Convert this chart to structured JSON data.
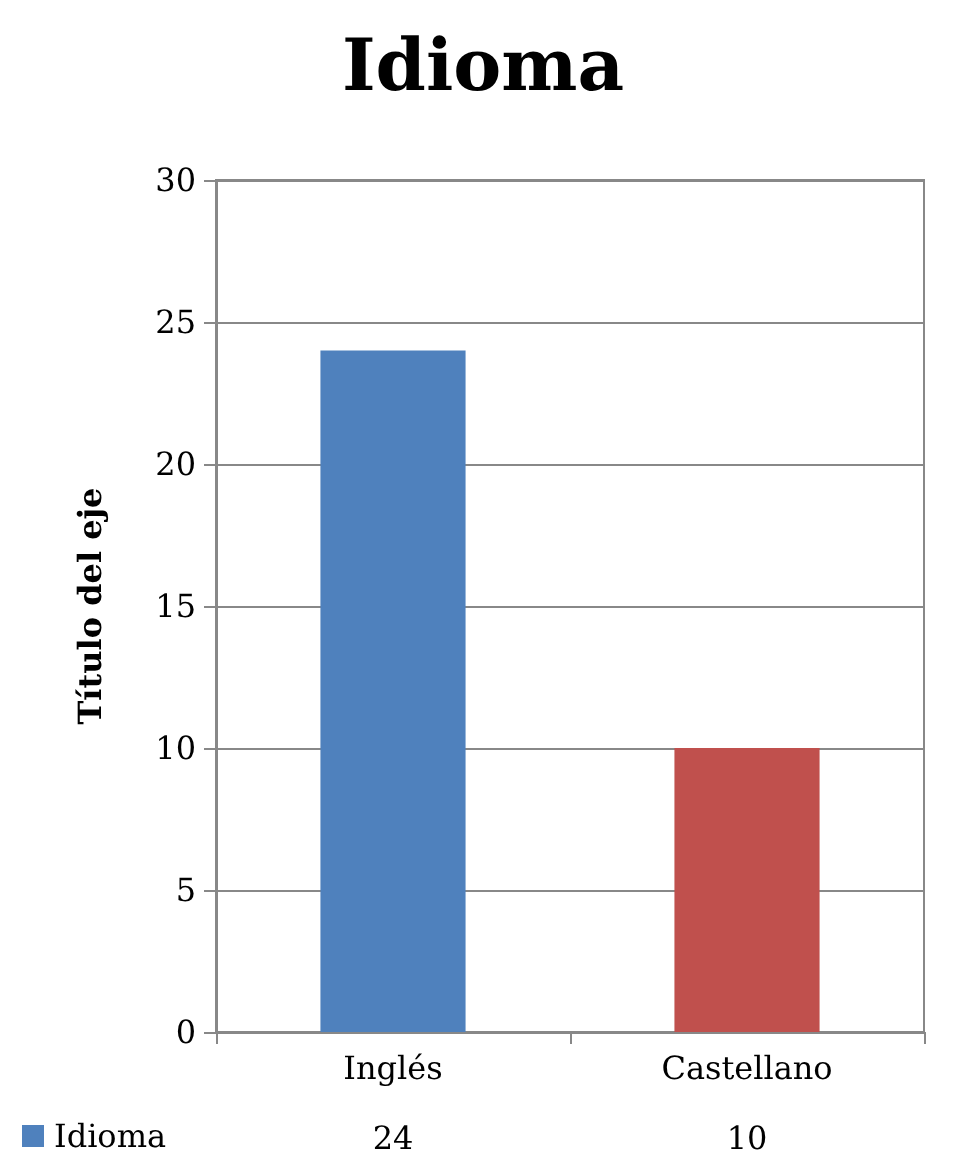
{
  "chart_data": {
    "type": "bar",
    "title": "Idioma",
    "ylabel": "Título del eje",
    "categories": [
      "Inglés",
      "Castellano"
    ],
    "series": [
      {
        "name": "Idioma",
        "values": [
          24,
          10
        ],
        "colors": [
          "#4f81bd",
          "#c0504d"
        ]
      }
    ],
    "ylim": [
      0,
      30
    ],
    "yticks": [
      0,
      5,
      10,
      15,
      20,
      25,
      30
    ],
    "grid": "y",
    "legend": "bottom left",
    "data_labels": true
  }
}
